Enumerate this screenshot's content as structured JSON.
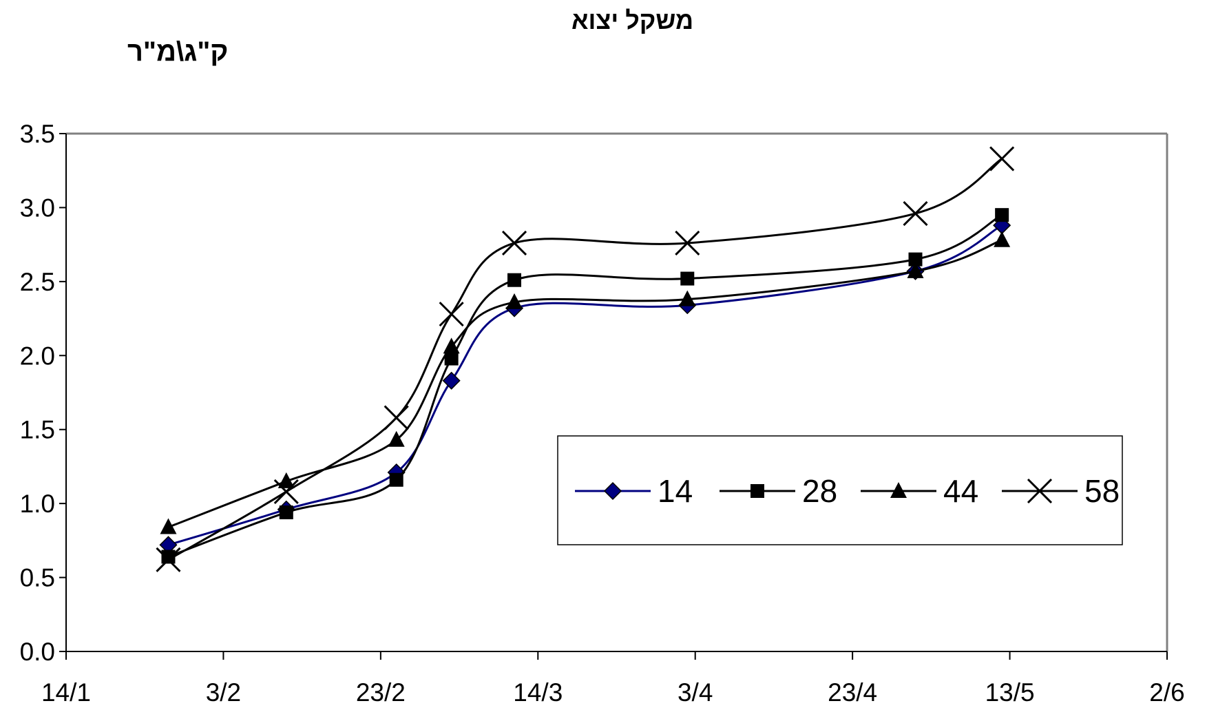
{
  "chart_data": {
    "type": "line",
    "title": "משקל יצוא",
    "ylabel": "ק\"ג\\מ\"ר",
    "xlabel": "",
    "x_ticks": [
      "14/1",
      "3/2",
      "23/2",
      "14/3",
      "3/4",
      "23/4",
      "13/5",
      "2/6"
    ],
    "x_tick_days": [
      0,
      20,
      40,
      60,
      80,
      100,
      120,
      140
    ],
    "xlim_days": [
      0,
      140
    ],
    "ylim": [
      0,
      3.5
    ],
    "y_ticks": [
      "0.0",
      "0.5",
      "1.0",
      "1.5",
      "2.0",
      "2.5",
      "3.0",
      "3.5"
    ],
    "grid": false,
    "legend_position": "lower-right inside plot",
    "colors": {
      "14": "#000080",
      "28": "#000000",
      "44": "#000000",
      "58": "#000000"
    },
    "series": [
      {
        "name": "14",
        "marker": "diamond",
        "points": [
          {
            "x": "27/1",
            "y": 0.72
          },
          {
            "x": "11/2",
            "y": 0.96
          },
          {
            "x": "25/2",
            "y": 1.21
          },
          {
            "x": "4/3",
            "y": 1.83
          },
          {
            "x": "12/3",
            "y": 2.32
          },
          {
            "x": "3/4",
            "y": 2.34
          },
          {
            "x": "2/5",
            "y": 2.57
          },
          {
            "x": "13/5",
            "y": 2.88
          }
        ]
      },
      {
        "name": "28",
        "marker": "square",
        "points": [
          {
            "x": "27/1",
            "y": 0.64
          },
          {
            "x": "11/2",
            "y": 0.94
          },
          {
            "x": "25/2",
            "y": 1.16
          },
          {
            "x": "4/3",
            "y": 1.98
          },
          {
            "x": "12/3",
            "y": 2.51
          },
          {
            "x": "3/4",
            "y": 2.52
          },
          {
            "x": "2/5",
            "y": 2.65
          },
          {
            "x": "13/5",
            "y": 2.95
          }
        ]
      },
      {
        "name": "44",
        "marker": "triangle",
        "points": [
          {
            "x": "27/1",
            "y": 0.84
          },
          {
            "x": "11/2",
            "y": 1.15
          },
          {
            "x": "25/2",
            "y": 1.43
          },
          {
            "x": "4/3",
            "y": 2.06
          },
          {
            "x": "12/3",
            "y": 2.36
          },
          {
            "x": "3/4",
            "y": 2.38
          },
          {
            "x": "2/5",
            "y": 2.57
          },
          {
            "x": "13/5",
            "y": 2.78
          }
        ]
      },
      {
        "name": "58",
        "marker": "x",
        "points": [
          {
            "x": "27/1",
            "y": 0.62
          },
          {
            "x": "11/2",
            "y": 1.08
          },
          {
            "x": "25/2",
            "y": 1.58
          },
          {
            "x": "4/3",
            "y": 2.28
          },
          {
            "x": "12/3",
            "y": 2.76
          },
          {
            "x": "3/4",
            "y": 2.76
          },
          {
            "x": "2/5",
            "y": 2.96
          },
          {
            "x": "13/5",
            "y": 3.33
          }
        ]
      }
    ]
  }
}
